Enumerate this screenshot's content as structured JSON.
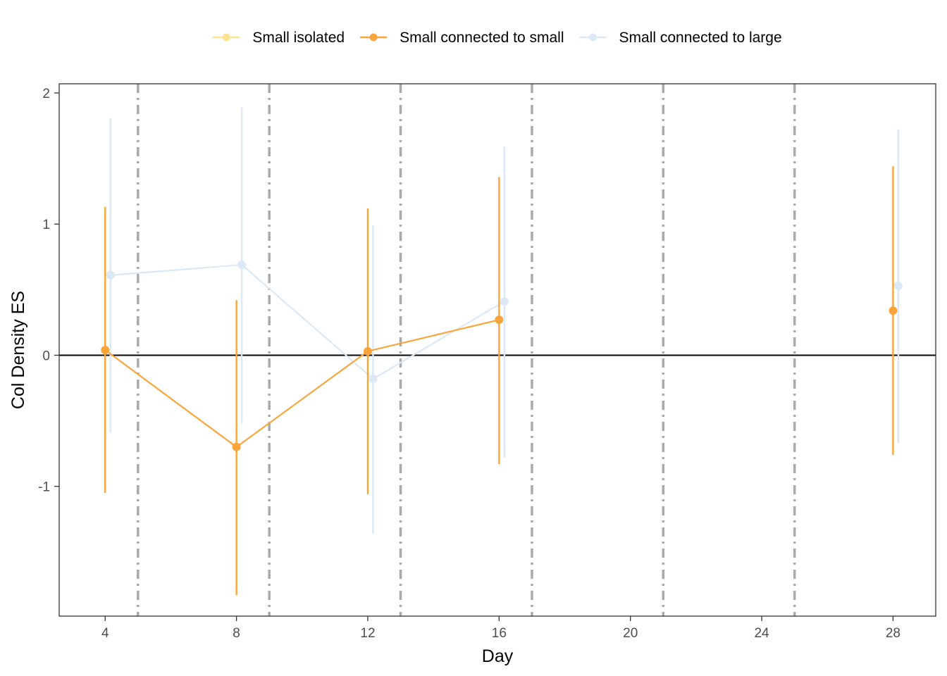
{
  "chart_data": {
    "type": "line",
    "xlabel": "Day",
    "ylabel": "Col Density ES",
    "xlim": [
      2.6,
      29.3
    ],
    "ylim": [
      -1.99,
      2.07
    ],
    "x_ticks": [
      4,
      8,
      12,
      16,
      20,
      24,
      28
    ],
    "x_tick_labels": [
      "4",
      "8",
      "12",
      "16",
      "20",
      "24",
      "28"
    ],
    "y_ticks": [
      -1,
      0,
      1,
      2
    ],
    "y_tick_labels": [
      "-1",
      "0",
      "1",
      "2"
    ],
    "grid": false,
    "legend_position": "top",
    "reference_hline": 0,
    "vertical_dashed_lines": [
      5,
      9,
      13,
      17,
      21,
      25
    ],
    "series": [
      {
        "name": "Small isolated",
        "color": "#FEE391",
        "x": [],
        "y": [],
        "lower": [],
        "upper": []
      },
      {
        "name": "Small connected to small",
        "color": "#F9A53B",
        "x": [
          4,
          8,
          12,
          16,
          28
        ],
        "y": [
          0.04,
          -0.7,
          0.03,
          0.27,
          0.34
        ],
        "lower": [
          -1.05,
          -1.83,
          -1.06,
          -0.83,
          -0.76
        ],
        "upper": [
          1.13,
          0.42,
          1.12,
          1.36,
          1.44
        ]
      },
      {
        "name": "Small connected to large",
        "color": "#DCE9F4",
        "x": [
          4,
          8,
          12,
          16,
          28
        ],
        "y": [
          0.61,
          0.69,
          -0.18,
          0.41,
          0.53
        ],
        "lower": [
          -0.59,
          -0.52,
          -1.36,
          -0.78,
          -0.67
        ],
        "upper": [
          1.81,
          1.89,
          0.99,
          1.59,
          1.72
        ]
      }
    ]
  }
}
